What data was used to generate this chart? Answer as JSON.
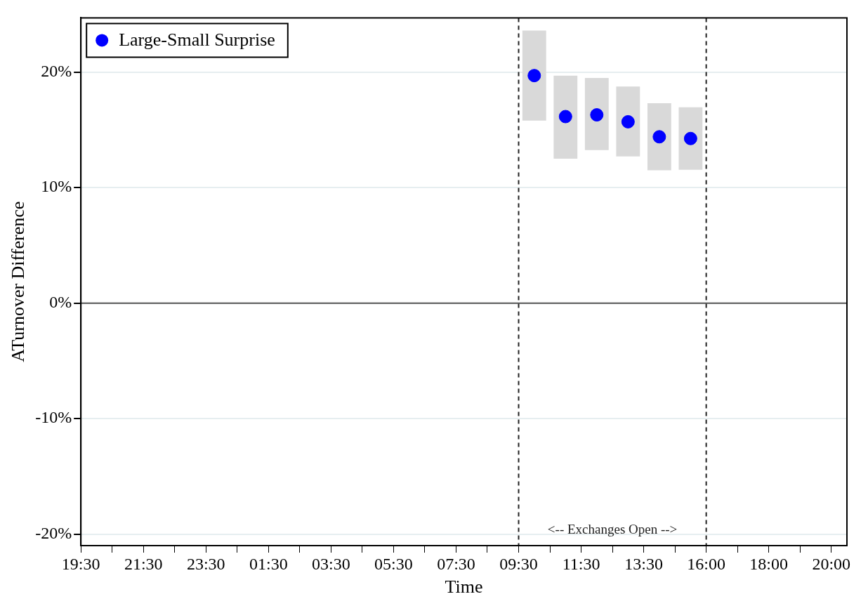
{
  "chart_data": {
    "type": "scatter",
    "xlabel": "Time",
    "ylabel": "ATurnover Difference",
    "annotations": [
      "<-- Exchanges Open -->"
    ],
    "categories": [
      "19:30",
      null,
      null,
      null,
      "21:30",
      null,
      null,
      null,
      "23:30",
      null,
      null,
      null,
      "01:30",
      null,
      null,
      null,
      "03:30",
      null,
      null,
      null,
      "05:30",
      null,
      null,
      null,
      "07:30",
      null,
      null,
      null,
      "09:30",
      null,
      null,
      null,
      "11:30",
      null,
      null,
      null,
      "13:30",
      null,
      null,
      null,
      "16:00",
      null,
      null,
      null,
      "18:00",
      null,
      null,
      null,
      "20:00",
      null
    ],
    "ylim": [
      -21,
      24.7
    ],
    "yticks": [
      {
        "value": -20,
        "label": "-20%"
      },
      {
        "value": -10,
        "label": "-10%"
      },
      {
        "value": 0,
        "label": "0%"
      },
      {
        "value": 10,
        "label": "10%"
      },
      {
        "value": 20,
        "label": "20%"
      }
    ],
    "series": [
      {
        "type": "bar",
        "color": "#d9d9d9",
        "base": [
          null,
          null,
          null,
          null,
          null,
          null,
          null,
          null,
          null,
          null,
          null,
          null,
          null,
          null,
          null,
          null,
          null,
          null,
          null,
          null,
          null,
          null,
          null,
          null,
          null,
          null,
          null,
          null,
          null,
          15.8,
          null,
          12.5,
          null,
          13.25,
          null,
          12.7,
          null,
          11.5,
          null,
          11.55,
          null,
          null,
          null,
          null,
          null,
          null,
          null,
          null,
          null,
          null
        ],
        "values": [
          null,
          null,
          null,
          null,
          null,
          null,
          null,
          null,
          null,
          null,
          null,
          null,
          null,
          null,
          null,
          null,
          null,
          null,
          null,
          null,
          null,
          null,
          null,
          null,
          null,
          null,
          null,
          null,
          null,
          7.8,
          null,
          7.2,
          null,
          6.25,
          null,
          6.05,
          null,
          5.8,
          null,
          5.4,
          null,
          null,
          null,
          null,
          null,
          null,
          null,
          null,
          null,
          null
        ]
      },
      {
        "name": "Large-Small Surprise",
        "color": "#0000ff",
        "values": [
          null,
          null,
          null,
          null,
          null,
          null,
          null,
          null,
          null,
          null,
          null,
          null,
          null,
          null,
          null,
          null,
          null,
          null,
          null,
          null,
          null,
          null,
          null,
          null,
          null,
          null,
          null,
          null,
          null,
          19.7,
          null,
          16.15,
          null,
          16.3,
          null,
          15.7,
          null,
          14.4,
          null,
          14.25,
          null,
          null,
          null,
          null,
          null,
          null,
          null,
          null,
          null,
          null
        ]
      }
    ],
    "ref_lines": [
      {
        "axis": "y",
        "value": 0,
        "color": "#555555",
        "line_style": "solid"
      },
      {
        "axis": "x",
        "value": "09:30",
        "color": "#222222",
        "line_style": "dashed"
      },
      {
        "axis": "x",
        "value": "16:00",
        "color": "#222222",
        "line_style": "dashed"
      }
    ],
    "grid": "y",
    "legend": "top left",
    "marker": "circle"
  }
}
